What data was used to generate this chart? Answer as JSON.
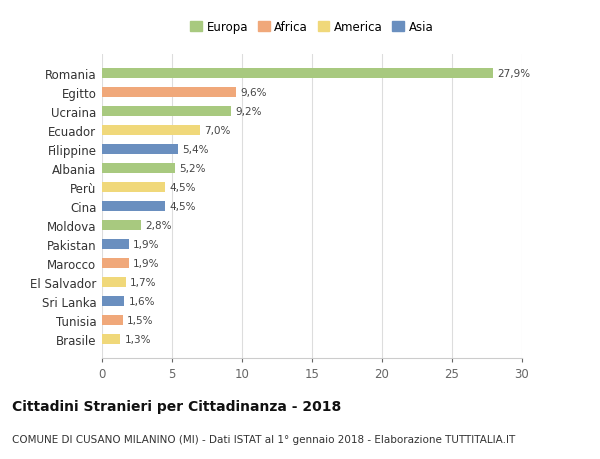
{
  "countries": [
    "Romania",
    "Egitto",
    "Ucraina",
    "Ecuador",
    "Filippine",
    "Albania",
    "Perù",
    "Cina",
    "Moldova",
    "Pakistan",
    "Marocco",
    "El Salvador",
    "Sri Lanka",
    "Tunisia",
    "Brasile"
  ],
  "values": [
    27.9,
    9.6,
    9.2,
    7.0,
    5.4,
    5.2,
    4.5,
    4.5,
    2.8,
    1.9,
    1.9,
    1.7,
    1.6,
    1.5,
    1.3
  ],
  "labels": [
    "27,9%",
    "9,6%",
    "9,2%",
    "7,0%",
    "5,4%",
    "5,2%",
    "4,5%",
    "4,5%",
    "2,8%",
    "1,9%",
    "1,9%",
    "1,7%",
    "1,6%",
    "1,5%",
    "1,3%"
  ],
  "continents": [
    "Europa",
    "Africa",
    "Europa",
    "America",
    "Asia",
    "Europa",
    "America",
    "Asia",
    "Europa",
    "Asia",
    "Africa",
    "America",
    "Asia",
    "Africa",
    "America"
  ],
  "colors": {
    "Europa": "#a8c97f",
    "Africa": "#f0a87a",
    "America": "#f0d87a",
    "Asia": "#6a8fbf"
  },
  "legend_order": [
    "Europa",
    "Africa",
    "America",
    "Asia"
  ],
  "xlim": [
    0,
    30
  ],
  "xticks": [
    0,
    5,
    10,
    15,
    20,
    25,
    30
  ],
  "title": "Cittadini Stranieri per Cittadinanza - 2018",
  "subtitle": "COMUNE DI CUSANO MILANINO (MI) - Dati ISTAT al 1° gennaio 2018 - Elaborazione TUTTITALIA.IT",
  "title_fontsize": 10,
  "subtitle_fontsize": 7.5,
  "background_color": "#ffffff",
  "grid_color": "#dddddd",
  "bar_height": 0.55
}
